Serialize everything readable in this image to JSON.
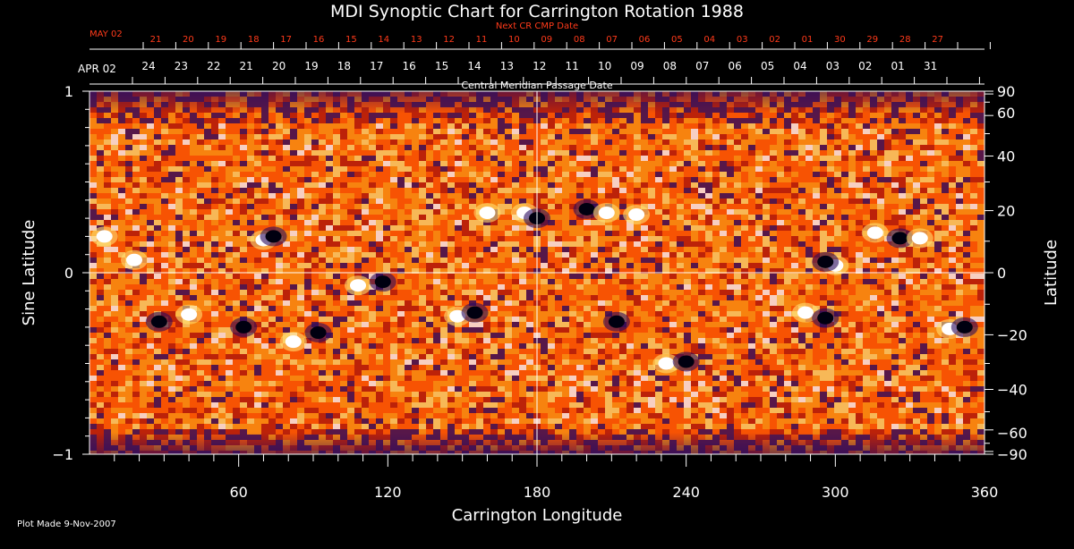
{
  "chart_data": {
    "type": "heatmap",
    "title": "MDI Synoptic Chart for Carrington Rotation 1988",
    "xlabel": "Carrington Longitude",
    "ylabel_left": "Sine Latitude",
    "ylabel_right": "Latitude",
    "xlim": [
      0,
      360
    ],
    "ylim": [
      -1,
      1
    ],
    "x_ticks": [
      60,
      120,
      180,
      240,
      300,
      360
    ],
    "y_left_ticks": [
      {
        "value": 1,
        "label": "1"
      },
      {
        "value": 0,
        "label": "0"
      },
      {
        "value": -1,
        "label": "−1"
      }
    ],
    "y_right_ticks": [
      {
        "deg": 90,
        "label": "90"
      },
      {
        "deg": 60,
        "label": "60"
      },
      {
        "deg": 40,
        "label": "40"
      },
      {
        "deg": 20,
        "label": "20"
      },
      {
        "deg": 0,
        "label": "0"
      },
      {
        "deg": -20,
        "label": "−20"
      },
      {
        "deg": -40,
        "label": "−40"
      },
      {
        "deg": -60,
        "label": "−60"
      },
      {
        "deg": -90,
        "label": "−90"
      }
    ],
    "grid_lines": {
      "longitude": 180,
      "sine_latitude": 0
    },
    "top_axis_label": "Central Meridian Passage Date",
    "top_axis_first_label": "APR 02",
    "top_axis_dates": [
      "24",
      "23",
      "22",
      "21",
      "20",
      "19",
      "18",
      "17",
      "16",
      "15",
      "14",
      "13",
      "12",
      "11",
      "10",
      "09",
      "08",
      "07",
      "06",
      "05",
      "04",
      "03",
      "02",
      "01",
      "31"
    ],
    "next_axis_label": "Next CR CMP Date",
    "next_axis_first_label": "MAY 02",
    "next_axis_dates": [
      "21",
      "20",
      "19",
      "18",
      "17",
      "16",
      "15",
      "14",
      "13",
      "12",
      "11",
      "10",
      "09",
      "08",
      "07",
      "06",
      "05",
      "04",
      "03",
      "02",
      "01",
      "30",
      "29",
      "28",
      "27"
    ],
    "colorscale": [
      "#000010",
      "#2a0a5e",
      "#b01808",
      "#ff5a00",
      "#ff9a10",
      "#ffe070",
      "#ffffff"
    ],
    "active_regions": [
      {
        "lon": 6,
        "sinlat": 0.2,
        "sign": "positive"
      },
      {
        "lon": 18,
        "sinlat": 0.07,
        "sign": "positive"
      },
      {
        "lon": 28,
        "sinlat": -0.27,
        "sign": "negative"
      },
      {
        "lon": 40,
        "sinlat": -0.23,
        "sign": "positive"
      },
      {
        "lon": 62,
        "sinlat": -0.3,
        "sign": "negative"
      },
      {
        "lon": 70,
        "sinlat": 0.18,
        "sign": "positive"
      },
      {
        "lon": 74,
        "sinlat": 0.2,
        "sign": "negative"
      },
      {
        "lon": 82,
        "sinlat": -0.38,
        "sign": "positive"
      },
      {
        "lon": 92,
        "sinlat": -0.33,
        "sign": "negative"
      },
      {
        "lon": 108,
        "sinlat": -0.07,
        "sign": "positive"
      },
      {
        "lon": 118,
        "sinlat": -0.05,
        "sign": "negative"
      },
      {
        "lon": 148,
        "sinlat": -0.24,
        "sign": "positive"
      },
      {
        "lon": 155,
        "sinlat": -0.22,
        "sign": "negative"
      },
      {
        "lon": 160,
        "sinlat": 0.33,
        "sign": "positive"
      },
      {
        "lon": 175,
        "sinlat": 0.33,
        "sign": "positive"
      },
      {
        "lon": 180,
        "sinlat": 0.3,
        "sign": "negative"
      },
      {
        "lon": 200,
        "sinlat": 0.35,
        "sign": "negative"
      },
      {
        "lon": 208,
        "sinlat": 0.33,
        "sign": "positive"
      },
      {
        "lon": 220,
        "sinlat": 0.32,
        "sign": "positive"
      },
      {
        "lon": 212,
        "sinlat": -0.27,
        "sign": "negative"
      },
      {
        "lon": 232,
        "sinlat": -0.5,
        "sign": "positive"
      },
      {
        "lon": 240,
        "sinlat": -0.49,
        "sign": "negative"
      },
      {
        "lon": 288,
        "sinlat": -0.22,
        "sign": "positive"
      },
      {
        "lon": 296,
        "sinlat": -0.25,
        "sign": "negative"
      },
      {
        "lon": 300,
        "sinlat": 0.04,
        "sign": "positive"
      },
      {
        "lon": 296,
        "sinlat": 0.06,
        "sign": "negative"
      },
      {
        "lon": 316,
        "sinlat": 0.22,
        "sign": "positive"
      },
      {
        "lon": 326,
        "sinlat": 0.19,
        "sign": "negative"
      },
      {
        "lon": 334,
        "sinlat": 0.19,
        "sign": "positive"
      },
      {
        "lon": 346,
        "sinlat": -0.31,
        "sign": "positive"
      },
      {
        "lon": 352,
        "sinlat": -0.3,
        "sign": "negative"
      }
    ]
  },
  "footer": {
    "plot_made": "Plot Made  9-Nov-2007"
  }
}
